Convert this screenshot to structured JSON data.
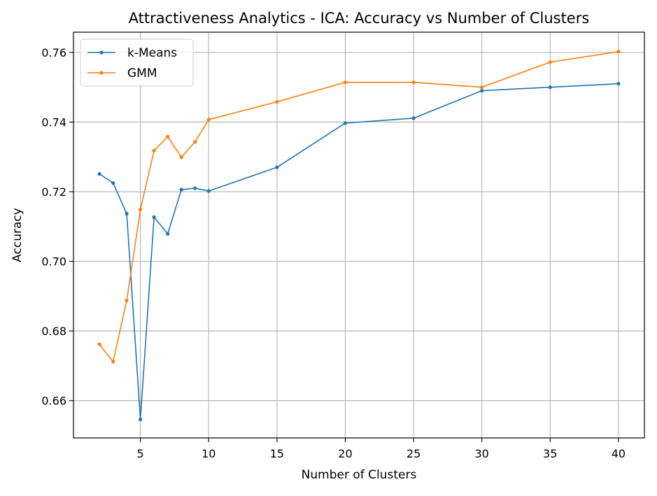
{
  "chart_data": {
    "type": "line",
    "title": "Attractiveness Analytics - ICA: Accuracy vs Number of Clusters",
    "xlabel": "Number of Clusters",
    "ylabel": "Accuracy",
    "x": [
      2,
      3,
      4,
      5,
      6,
      7,
      8,
      9,
      10,
      15,
      20,
      25,
      30,
      35,
      40
    ],
    "xlim": [
      0.1,
      41.9
    ],
    "ylim": [
      0.6493,
      0.7658
    ],
    "x_ticks": [
      5,
      10,
      15,
      20,
      25,
      30,
      35,
      40
    ],
    "y_ticks": [
      0.66,
      0.68,
      0.7,
      0.72,
      0.74,
      0.76
    ],
    "x_tick_labels": [
      "5",
      "10",
      "15",
      "20",
      "25",
      "30",
      "35",
      "40"
    ],
    "y_tick_labels": [
      "0.66",
      "0.68",
      "0.70",
      "0.72",
      "0.74",
      "0.76"
    ],
    "grid": true,
    "legend_position": "top-left",
    "series": [
      {
        "name": "k-Means",
        "color": "#1f77b4",
        "marker": "circle",
        "values": [
          0.7251,
          0.7225,
          0.7137,
          0.6546,
          0.7127,
          0.7079,
          0.7206,
          0.721,
          0.7202,
          0.727,
          0.7397,
          0.7411,
          0.749,
          0.75,
          0.751
        ]
      },
      {
        "name": "GMM",
        "color": "#ff7f0e",
        "marker": "circle",
        "values": [
          0.6762,
          0.6712,
          0.6888,
          0.7149,
          0.7318,
          0.7358,
          0.7299,
          0.7343,
          0.7407,
          0.7458,
          0.7514,
          0.7514,
          0.75,
          0.7572,
          0.7602
        ]
      }
    ]
  }
}
